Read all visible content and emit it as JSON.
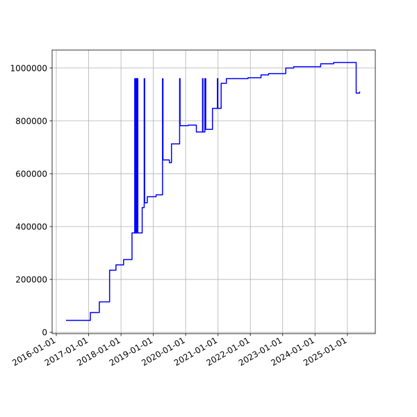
{
  "chart_data": {
    "type": "line",
    "color": "#0000ff",
    "grid": true,
    "xlim": [
      "2015-11-15",
      "2025-11-12"
    ],
    "xticks": [
      "2016-01-01",
      "2017-01-01",
      "2018-01-01",
      "2019-01-01",
      "2020-01-01",
      "2021-01-01",
      "2022-01-01",
      "2023-01-01",
      "2024-01-01",
      "2025-01-01"
    ],
    "ylim": [
      -5000,
      1068000
    ],
    "yticks": [
      0,
      200000,
      400000,
      600000,
      800000,
      1000000
    ],
    "x": [
      "2016-04-20",
      "2017-01-20",
      "2017-01-20",
      "2017-05-01",
      "2017-05-01",
      "2017-08-25",
      "2017-08-25",
      "2017-11-05",
      "2017-11-05",
      "2018-01-30",
      "2018-01-30",
      "2018-05-05",
      "2018-05-05",
      "2018-06-05",
      "2018-06-05",
      "2018-06-10",
      "2018-06-10",
      "2018-06-20",
      "2018-06-20",
      "2018-06-28",
      "2018-06-28",
      "2018-07-05",
      "2018-07-05",
      "2018-07-10",
      "2018-07-10",
      "2018-08-28",
      "2018-08-28",
      "2018-09-20",
      "2018-09-20",
      "2018-09-25",
      "2018-09-25",
      "2018-10-25",
      "2018-10-25",
      "2019-02-01",
      "2019-02-01",
      "2019-04-15",
      "2019-04-15",
      "2019-04-20",
      "2019-04-20",
      "2019-07-01",
      "2019-07-01",
      "2019-07-25",
      "2019-07-25",
      "2019-10-25",
      "2019-10-25",
      "2019-10-30",
      "2019-10-30",
      "2020-01-30",
      "2020-01-30",
      "2020-05-01",
      "2020-05-01",
      "2020-07-10",
      "2020-07-10",
      "2020-07-15",
      "2020-07-15",
      "2020-08-05",
      "2020-08-05",
      "2020-08-15",
      "2020-08-15",
      "2020-10-30",
      "2020-10-30",
      "2020-12-25",
      "2020-12-25",
      "2020-12-30",
      "2020-12-30",
      "2021-02-05",
      "2021-02-05",
      "2021-04-05",
      "2021-04-05",
      "2021-12-05",
      "2021-12-05",
      "2022-05-01",
      "2022-05-01",
      "2022-07-25",
      "2022-07-25",
      "2023-02-05",
      "2023-02-05",
      "2023-05-05",
      "2023-05-05",
      "2024-03-05",
      "2024-03-05",
      "2024-07-30",
      "2024-07-30",
      "2025-04-10",
      "2025-04-10",
      "2025-05-18",
      "2025-05-18",
      "2025-05-25"
    ],
    "values": [
      45000,
      45000,
      75000,
      75000,
      115000,
      115000,
      235000,
      235000,
      255000,
      255000,
      275000,
      275000,
      376000,
      376000,
      960000,
      960000,
      376000,
      376000,
      960000,
      960000,
      376000,
      376000,
      960000,
      960000,
      376000,
      376000,
      472000,
      472000,
      960000,
      960000,
      490000,
      490000,
      513000,
      513000,
      520000,
      520000,
      960000,
      960000,
      652000,
      652000,
      642000,
      642000,
      713000,
      713000,
      960000,
      960000,
      782000,
      782000,
      784000,
      784000,
      758000,
      758000,
      960000,
      960000,
      758000,
      758000,
      960000,
      960000,
      768000,
      768000,
      847000,
      847000,
      960000,
      960000,
      847000,
      847000,
      942000,
      942000,
      960000,
      960000,
      963000,
      963000,
      974000,
      974000,
      979000,
      979000,
      1000000,
      1000000,
      1005000,
      1005000,
      1016000,
      1016000,
      1021000,
      1021000,
      905000,
      905000,
      909000,
      909000
    ]
  }
}
